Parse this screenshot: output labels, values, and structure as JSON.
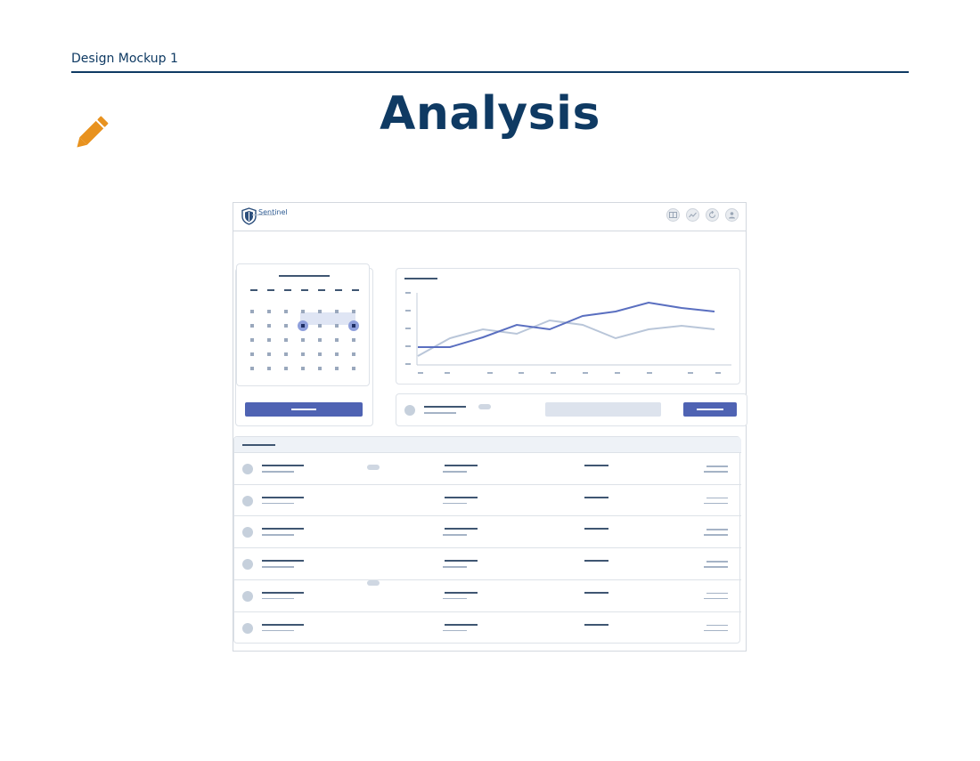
{
  "document": {
    "label": "Design Mockup 1",
    "title": "Analysis"
  },
  "icons": {
    "pencil": "pencil-icon",
    "logo": "shield-logo-icon",
    "topbar": [
      "panels-icon",
      "trend-icon",
      "refresh-icon",
      "user-icon"
    ]
  },
  "mockup": {
    "brand_name": "Sentinel",
    "table_rows": 6
  },
  "colors": {
    "navy": "#0f3a63",
    "accent": "#4f63b3",
    "pencil": "#e8921f",
    "series_primary": "#5a6fc0",
    "series_secondary": "#b9c6d9"
  }
}
